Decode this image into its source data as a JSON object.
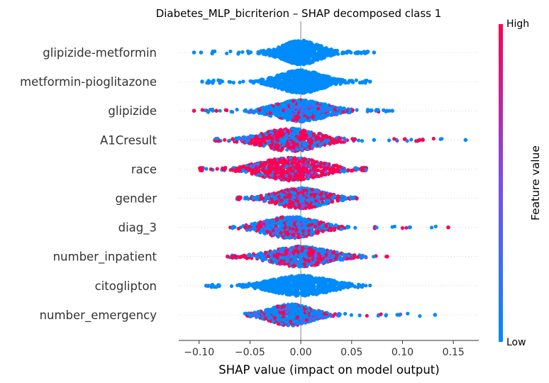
{
  "chart_data": {
    "type": "scatter",
    "subtype": "shap-beeswarm",
    "title": "Diabetes_MLP_bicriterion – SHAP decomposed class 1",
    "xlabel": "SHAP value (impact on model output)",
    "xlim": [
      -0.12,
      0.175
    ],
    "xticks": [
      "−0.10",
      "−0.05",
      "0.00",
      "0.05",
      "0.10",
      "0.15"
    ],
    "xtick_values": [
      -0.1,
      -0.05,
      0.0,
      0.05,
      0.1,
      0.15
    ],
    "colorbar": {
      "label": "Feature value",
      "high": "High",
      "low": "Low",
      "low_color": "#008bfb",
      "high_color": "#ff0052"
    },
    "zero_line": true,
    "features": [
      {
        "name": "glipizide-metformin",
        "min": -0.105,
        "max": 0.072,
        "core_lo": -0.05,
        "core_hi": 0.045,
        "peak": 0.0,
        "width": 0.9,
        "high_share": 0.0,
        "outliers": [
          [
            -0.105,
            0
          ],
          [
            -0.098,
            0
          ],
          [
            0.065,
            0
          ],
          [
            0.072,
            0
          ]
        ]
      },
      {
        "name": "metformin-pioglitazone",
        "min": -0.097,
        "max": 0.068,
        "core_lo": -0.06,
        "core_hi": 0.05,
        "peak": 0.0,
        "width": 0.85,
        "high_share": 0.0,
        "outliers": [
          [
            -0.097,
            0
          ],
          [
            -0.09,
            0
          ],
          [
            0.068,
            0
          ]
        ]
      },
      {
        "name": "glipizide",
        "min": -0.105,
        "max": 0.09,
        "core_lo": -0.06,
        "core_hi": 0.065,
        "peak": 0.0,
        "width": 0.8,
        "high_share": 0.15,
        "outliers": [
          [
            -0.105,
            1
          ],
          [
            -0.083,
            1
          ],
          [
            0.085,
            0
          ],
          [
            0.09,
            0
          ]
        ]
      },
      {
        "name": "A1Cresult",
        "min": -0.085,
        "max": 0.162,
        "core_lo": -0.08,
        "core_hi": 0.06,
        "peak": -0.01,
        "width": 0.85,
        "high_share": 0.55,
        "outliers": [
          [
            0.072,
            0
          ],
          [
            0.117,
            1
          ],
          [
            0.12,
            1
          ],
          [
            0.162,
            0
          ]
        ]
      },
      {
        "name": "race",
        "min": -0.1,
        "max": 0.065,
        "core_lo": -0.095,
        "core_hi": 0.06,
        "peak": -0.01,
        "width": 0.85,
        "high_share": 0.7,
        "outliers": []
      },
      {
        "name": "gender",
        "min": -0.063,
        "max": 0.058,
        "core_lo": -0.06,
        "core_hi": 0.058,
        "peak": 0.0,
        "width": 0.75,
        "high_share": 0.5,
        "outliers": []
      },
      {
        "name": "diag_3",
        "min": -0.07,
        "max": 0.145,
        "core_lo": -0.07,
        "core_hi": 0.06,
        "peak": -0.01,
        "width": 0.8,
        "high_share": 0.3,
        "outliers": [
          [
            0.107,
            0
          ],
          [
            0.145,
            1
          ]
        ]
      },
      {
        "name": "number_inpatient",
        "min": -0.072,
        "max": 0.085,
        "core_lo": -0.055,
        "core_hi": 0.085,
        "peak": 0.0,
        "width": 0.75,
        "high_share": 0.45,
        "outliers": [
          [
            -0.072,
            1
          ],
          [
            -0.058,
            1
          ],
          [
            0.085,
            1
          ]
        ]
      },
      {
        "name": "citoglipton",
        "min": -0.093,
        "max": 0.07,
        "core_lo": -0.075,
        "core_hi": 0.07,
        "peak": 0.0,
        "width": 0.75,
        "high_share": 0.0,
        "outliers": [
          [
            -0.093,
            0
          ],
          [
            -0.088,
            0
          ]
        ]
      },
      {
        "name": "number_emergency",
        "min": -0.062,
        "max": 0.132,
        "core_lo": -0.062,
        "core_hi": 0.04,
        "peak": -0.01,
        "width": 0.8,
        "high_share": 0.2,
        "outliers": [
          [
            0.095,
            0
          ],
          [
            0.097,
            0
          ],
          [
            0.132,
            0
          ]
        ]
      }
    ]
  }
}
